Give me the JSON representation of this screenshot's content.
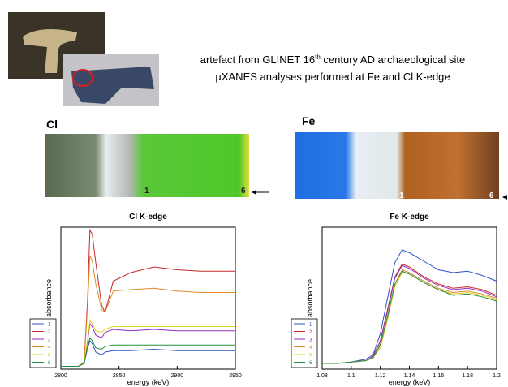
{
  "header": {
    "line1_start": "artefact from GLINET 16",
    "line1_sup": "th",
    "line1_end": " century AD archaeological site",
    "line2": "µXANES analyses performed at Fe and Cl K-edge"
  },
  "maps": [
    {
      "label": "Cl",
      "marker_left": "1",
      "marker_right": "6"
    },
    {
      "label": "Fe",
      "marker_left": "1",
      "marker_right": "6"
    }
  ],
  "chart_data": [
    {
      "type": "line",
      "title": "Cl K-edge",
      "x_label": "energy (keV)",
      "y_label": "absorbance",
      "x": [
        2800,
        2815,
        2820,
        2823,
        2825,
        2827,
        2830,
        2835,
        2838,
        2845,
        2860,
        2880,
        2900,
        2920,
        2950
      ],
      "xlim": [
        2800,
        2950
      ],
      "xticks": [
        2800,
        2850,
        2900,
        2950
      ],
      "ylim": [
        0,
        1
      ],
      "series": [
        {
          "name": "1",
          "color": "#3050c8",
          "values": [
            0.02,
            0.02,
            0.04,
            0.15,
            0.2,
            0.18,
            0.12,
            0.1,
            0.12,
            0.13,
            0.13,
            0.14,
            0.13,
            0.13,
            0.13
          ]
        },
        {
          "name": "2",
          "color": "#c82828",
          "values": [
            0.02,
            0.02,
            0.05,
            0.5,
            0.98,
            0.95,
            0.75,
            0.45,
            0.4,
            0.62,
            0.68,
            0.72,
            0.7,
            0.69,
            0.69
          ]
        },
        {
          "name": "3",
          "color": "#9030c0",
          "values": [
            0.02,
            0.02,
            0.04,
            0.2,
            0.32,
            0.3,
            0.24,
            0.22,
            0.26,
            0.28,
            0.27,
            0.28,
            0.27,
            0.27,
            0.27
          ]
        },
        {
          "name": "4",
          "color": "#e08a2a",
          "values": [
            0.02,
            0.02,
            0.05,
            0.45,
            0.8,
            0.76,
            0.6,
            0.42,
            0.4,
            0.55,
            0.56,
            0.57,
            0.55,
            0.54,
            0.54
          ]
        },
        {
          "name": "5",
          "color": "#e0d020",
          "values": [
            0.02,
            0.02,
            0.04,
            0.22,
            0.34,
            0.32,
            0.27,
            0.26,
            0.28,
            0.3,
            0.3,
            0.3,
            0.3,
            0.3,
            0.3
          ]
        },
        {
          "name": "6",
          "color": "#209040",
          "values": [
            0.02,
            0.02,
            0.04,
            0.16,
            0.22,
            0.2,
            0.15,
            0.14,
            0.16,
            0.17,
            0.17,
            0.17,
            0.17,
            0.17,
            0.17
          ]
        }
      ]
    },
    {
      "type": "line",
      "title": "Fe K-edge",
      "x_label": "energy (keV)",
      "y_label": "absorbance",
      "x": [
        1.08,
        1.09,
        1.1,
        1.11,
        1.115,
        1.12,
        1.125,
        1.13,
        1.135,
        1.14,
        1.15,
        1.16,
        1.17,
        1.18,
        1.19,
        1.2
      ],
      "xlim": [
        1.08,
        1.2
      ],
      "xticks": [
        1.08,
        1.1,
        1.12,
        1.14,
        1.16,
        1.18,
        1.2
      ],
      "ylim": [
        0,
        1
      ],
      "series": [
        {
          "name": "1",
          "color": "#3050c8",
          "values": [
            0.04,
            0.04,
            0.05,
            0.07,
            0.1,
            0.25,
            0.5,
            0.75,
            0.84,
            0.82,
            0.76,
            0.7,
            0.68,
            0.69,
            0.66,
            0.62
          ]
        },
        {
          "name": "2",
          "color": "#c82828",
          "values": [
            0.04,
            0.04,
            0.05,
            0.06,
            0.09,
            0.2,
            0.42,
            0.65,
            0.74,
            0.72,
            0.65,
            0.6,
            0.57,
            0.58,
            0.56,
            0.52
          ]
        },
        {
          "name": "3",
          "color": "#9030c0",
          "values": [
            0.04,
            0.04,
            0.05,
            0.06,
            0.09,
            0.2,
            0.41,
            0.64,
            0.73,
            0.71,
            0.64,
            0.59,
            0.56,
            0.57,
            0.55,
            0.51
          ]
        },
        {
          "name": "4",
          "color": "#e08a2a",
          "values": [
            0.04,
            0.04,
            0.05,
            0.06,
            0.08,
            0.18,
            0.38,
            0.6,
            0.7,
            0.68,
            0.62,
            0.57,
            0.54,
            0.55,
            0.53,
            0.5
          ]
        },
        {
          "name": "5",
          "color": "#e0d020",
          "values": [
            0.04,
            0.04,
            0.05,
            0.06,
            0.08,
            0.15,
            0.35,
            0.58,
            0.68,
            0.67,
            0.61,
            0.56,
            0.53,
            0.54,
            0.52,
            0.49
          ]
        },
        {
          "name": "6",
          "color": "#209040",
          "values": [
            0.04,
            0.04,
            0.05,
            0.06,
            0.08,
            0.17,
            0.37,
            0.6,
            0.69,
            0.67,
            0.61,
            0.56,
            0.52,
            0.53,
            0.51,
            0.48
          ]
        }
      ]
    }
  ]
}
